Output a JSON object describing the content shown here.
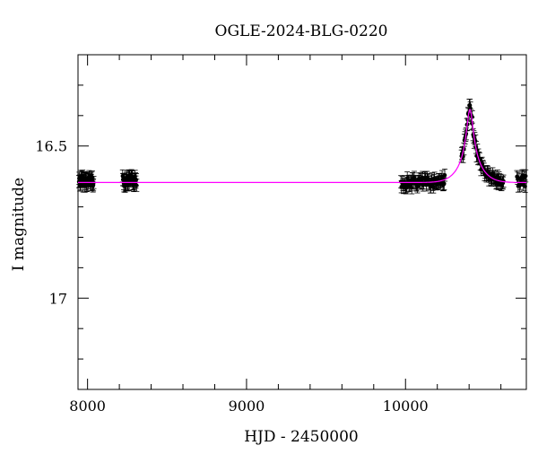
{
  "chart_data": {
    "type": "scatter",
    "title": "OGLE-2024-BLG-0220",
    "xlabel": "HJD - 2450000",
    "ylabel": "I magnitude",
    "xlim": [
      7940,
      10760
    ],
    "ylim": [
      17.3,
      16.2
    ],
    "y_inverted": true,
    "grid": false,
    "legend": "none",
    "x_ticks": [
      {
        "value": 8000,
        "label": "8000"
      },
      {
        "value": 9000,
        "label": "9000"
      },
      {
        "value": 10000,
        "label": "10000"
      }
    ],
    "y_ticks": [
      {
        "value": 16.5,
        "label": "16.5"
      },
      {
        "value": 17,
        "label": "17"
      }
    ],
    "colors": {
      "data": "#000000",
      "model": "#ff00ff",
      "axes": "#000000"
    },
    "series": [
      {
        "kind": "data-points-with-errorbars",
        "seasons": [
          {
            "x_start": 7945,
            "x_end": 8040,
            "baseline": 16.615,
            "n": 40
          },
          {
            "x_start": 8220,
            "x_end": 8310,
            "baseline": 16.615,
            "n": 40
          },
          {
            "x_start": 9970,
            "x_end": 10250,
            "baseline": 16.62,
            "n": 70
          },
          {
            "x_start": 10350,
            "x_end": 10620,
            "baseline": 16.62,
            "n": 70
          },
          {
            "x_start": 10700,
            "x_end": 10760,
            "baseline": 16.615,
            "n": 14
          }
        ],
        "error": 0.02
      },
      {
        "kind": "model-curve",
        "baseline": 16.62,
        "peak": {
          "x": 10405,
          "y": 16.38
        },
        "width": 55
      }
    ]
  }
}
